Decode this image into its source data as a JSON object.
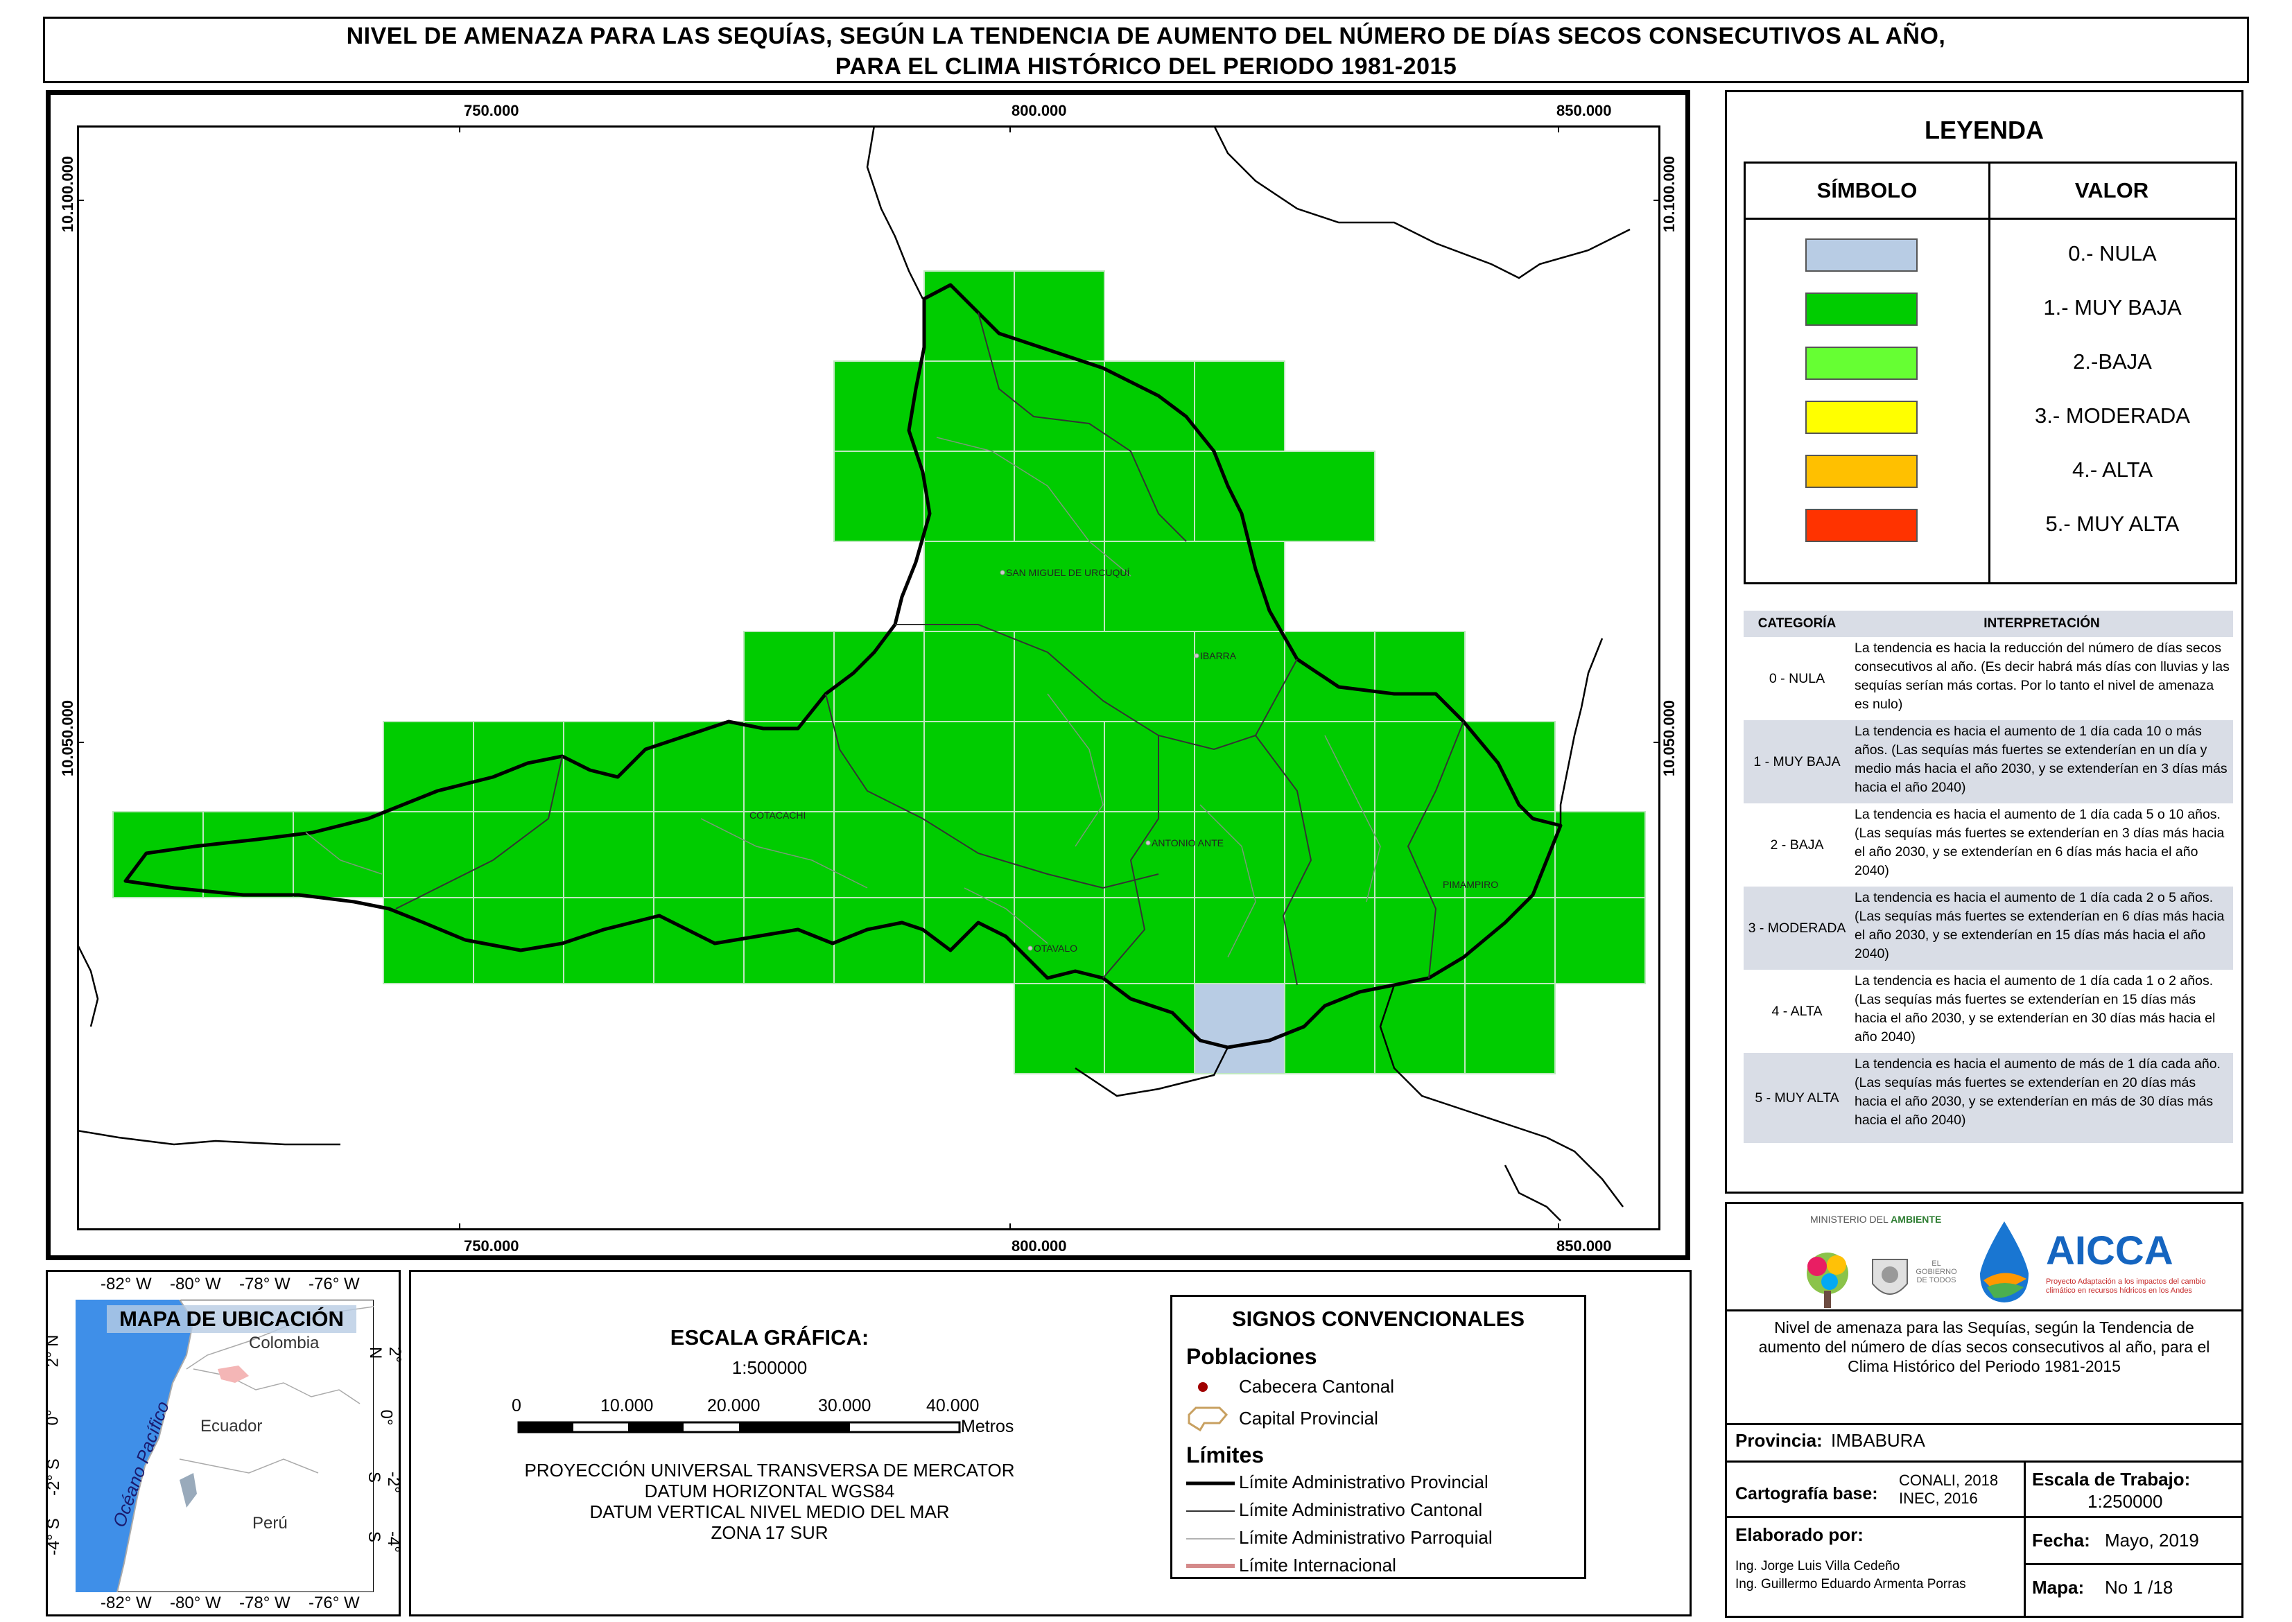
{
  "title": {
    "line1": "NIVEL DE AMENAZA PARA LAS SEQUÍAS, SEGÚN LA TENDENCIA DE AUMENTO DEL NÚMERO DE DÍAS SECOS CONSECUTIVOS AL AÑO,",
    "line2": "PARA EL CLIMA HISTÓRICO DEL PERIODO 1981-2015"
  },
  "map": {
    "x_ticks": [
      "750.000",
      "800.000",
      "850.000"
    ],
    "y_ticks": [
      "10.100.000",
      "10.050.000"
    ],
    "places": [
      "SAN MIGUEL DE URCUQUÍ",
      "IBARRA",
      "COTACACHI",
      "ANTONIO ANTE",
      "PIMAMPIRO",
      "OTAVALO"
    ],
    "colors": {
      "muy_baja": "#00cc00",
      "nula": "#b8cce4"
    }
  },
  "legend": {
    "title": "LEYENDA",
    "col_symbol": "SÍMBOLO",
    "col_value": "VALOR",
    "items": [
      {
        "label": "0.- NULA",
        "color": "#b8cce4"
      },
      {
        "label": "1.- MUY BAJA",
        "color": "#00cc00"
      },
      {
        "label": "2.-BAJA",
        "color": "#66ff33"
      },
      {
        "label": "3.- MODERADA",
        "color": "#ffff00"
      },
      {
        "label": "4.- ALTA",
        "color": "#ffc000"
      },
      {
        "label": "5.- MUY ALTA",
        "color": "#ff3300"
      }
    ]
  },
  "interpretation": {
    "col_category": "CATEGORÍA",
    "col_interp": "INTERPRETACIÓN",
    "rows": [
      {
        "cat": "0 - NULA",
        "text": "La tendencia es hacia la reducción del número de días secos consecutivos al año. (Es decir habrá más días con lluvias y las sequías serían más cortas. Por lo tanto el nivel de amenaza es nulo)"
      },
      {
        "cat": "1 - MUY BAJA",
        "text": "La tendencia es hacia el aumento de 1 día cada 10 o más años. (Las sequías más fuertes se extenderían en un día y medio más hacia el año 2030, y se extenderían en 3 días más hacia el año 2040)"
      },
      {
        "cat": "2 - BAJA",
        "text": "La tendencia es hacia el aumento de 1 día cada 5 o 10 años. (Las sequías más fuertes se extenderían en 3 días más hacia el año 2030, y se extenderían en 6 días más hacia el año 2040)"
      },
      {
        "cat": "3 - MODERADA",
        "text": "La tendencia es hacia el aumento de 1 día cada 2 o 5 años. (Las sequías más fuertes se extenderían en 6 días más hacia el año 2030, y se extenderían en 15 días más hacia el año 2040)"
      },
      {
        "cat": "4 - ALTA",
        "text": "La tendencia es hacia el aumento de 1 día cada 1 o 2 años. (Las sequías más fuertes se extenderían en 15 días más hacia el año 2030, y se extenderían en 30 días más hacia el año 2040)"
      },
      {
        "cat": "5 - MUY ALTA",
        "text": "La tendencia es hacia el aumento de más de 1 día cada año. (Las sequías más fuertes se extenderían en 20 días más hacia el año 2030, y se extenderían en más de 30 días más hacia el año 2040)"
      }
    ]
  },
  "logos": {
    "ministerio_prefix": "MINISTERIO DEL ",
    "ministerio_name": "AMBIENTE",
    "gobierno": "EL GOBIERNO DE TODOS",
    "aicca": "AICCA",
    "aicca_sub": "Proyecto Adaptación a los impactos del cambio climático en recursos hídricos en los Andes"
  },
  "info": {
    "description": "Nivel de amenaza para las Sequías, según la Tendencia de aumento del número de días secos consecutivos al año, para el Clima Histórico del Periodo 1981-2015",
    "provincia_label": "Provincia:",
    "provincia_value": "IMBABURA",
    "cartografia_label": "Cartografía base:",
    "cartografia_value_1": "CONALI, 2018",
    "cartografia_value_2": "INEC, 2016",
    "escala_trabajo_label": "Escala de Trabajo:",
    "escala_trabajo_value": "1:250000",
    "elaborado_label": "Elaborado por:",
    "elaborado_1": "Ing. Jorge Luis Villa Cedeño",
    "elaborado_2": "Ing. Guillermo Eduardo Armenta Porras",
    "fecha_label": "Fecha:",
    "fecha_value": "Mayo, 2019",
    "mapa_label": "Mapa:",
    "mapa_value": "No 1 /18"
  },
  "location_map": {
    "title": "MAPA DE UBICACIÓN",
    "top_ticks": [
      "-82° W",
      "-80° W",
      "-78° W",
      "-76° W"
    ],
    "bottom_ticks": [
      "-82° W",
      "-80° W",
      "-78° W",
      "-76° W"
    ],
    "side_ticks": [
      "2° N",
      "0°",
      "-2° S",
      "-4° S"
    ],
    "ocean": "Océano Pacífico",
    "countries": [
      "Colombia",
      "Ecuador",
      "Perú"
    ]
  },
  "scale": {
    "title": "ESCALA GRÁFICA:",
    "ratio": "1:500000",
    "labels": [
      "0",
      "10.000",
      "20.000",
      "30.000",
      "40.000"
    ],
    "unit": "Metros",
    "projection": [
      "PROYECCIÓN UNIVERSAL TRANSVERSA DE MERCATOR",
      "DATUM HORIZONTAL WGS84",
      "DATUM VERTICAL NIVEL MEDIO DEL MAR",
      "ZONA 17 SUR"
    ]
  },
  "signs": {
    "title": "SIGNOS CONVENCIONALES",
    "poblaciones": "Poblaciones",
    "cabecera": "Cabecera Cantonal",
    "capital": "Capital Provincial",
    "limites": "Límites",
    "provincial": "Límite Administrativo Provincial",
    "cantonal": "Límite Administrativo Cantonal",
    "parroquial": "Límite Administrativo Parroquial",
    "internacional": "Límite Internacional"
  }
}
